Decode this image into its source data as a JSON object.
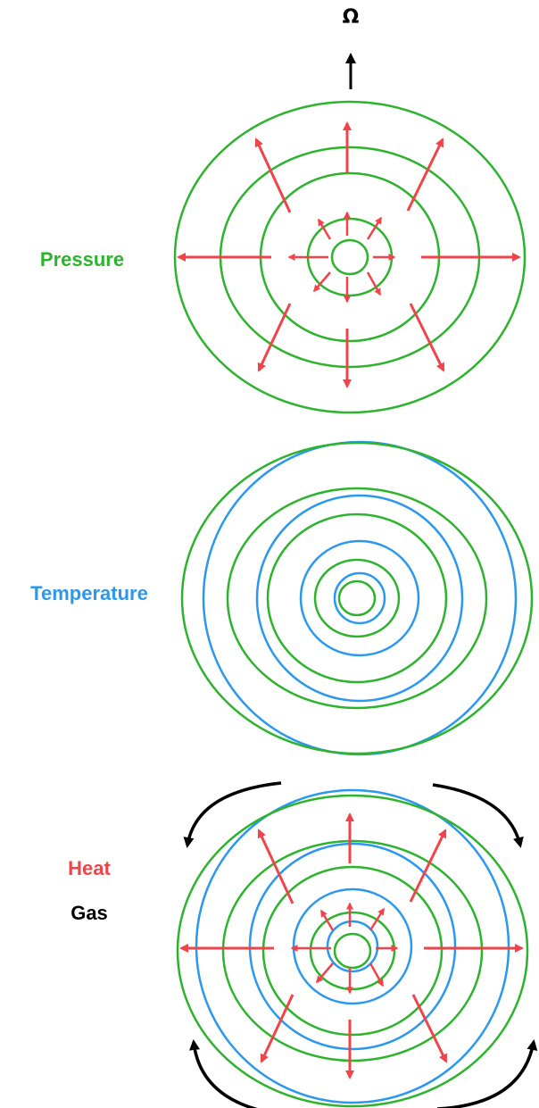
{
  "labels": {
    "omega": "Ω",
    "pressure": "Pressure",
    "temperature": "Temperature",
    "heat": "Heat",
    "gas": "Gas"
  },
  "colors": {
    "pressure": "#2db32d",
    "temperature": "#2b98f0",
    "heat": "#f0444a",
    "gas": "#000000"
  },
  "panels": [
    {
      "name": "pressure-panel",
      "isobars": true,
      "isotherms": false,
      "heat_arrows": true,
      "gas_arrows": false
    },
    {
      "name": "temperature-panel",
      "isobars": true,
      "isotherms": true,
      "heat_arrows": false,
      "gas_arrows": false
    },
    {
      "name": "heat-gas-panel",
      "isobars": true,
      "isotherms": true,
      "heat_arrows": true,
      "gas_arrows": true
    }
  ],
  "icons": {
    "rotation_axis": "up-arrow-icon"
  }
}
